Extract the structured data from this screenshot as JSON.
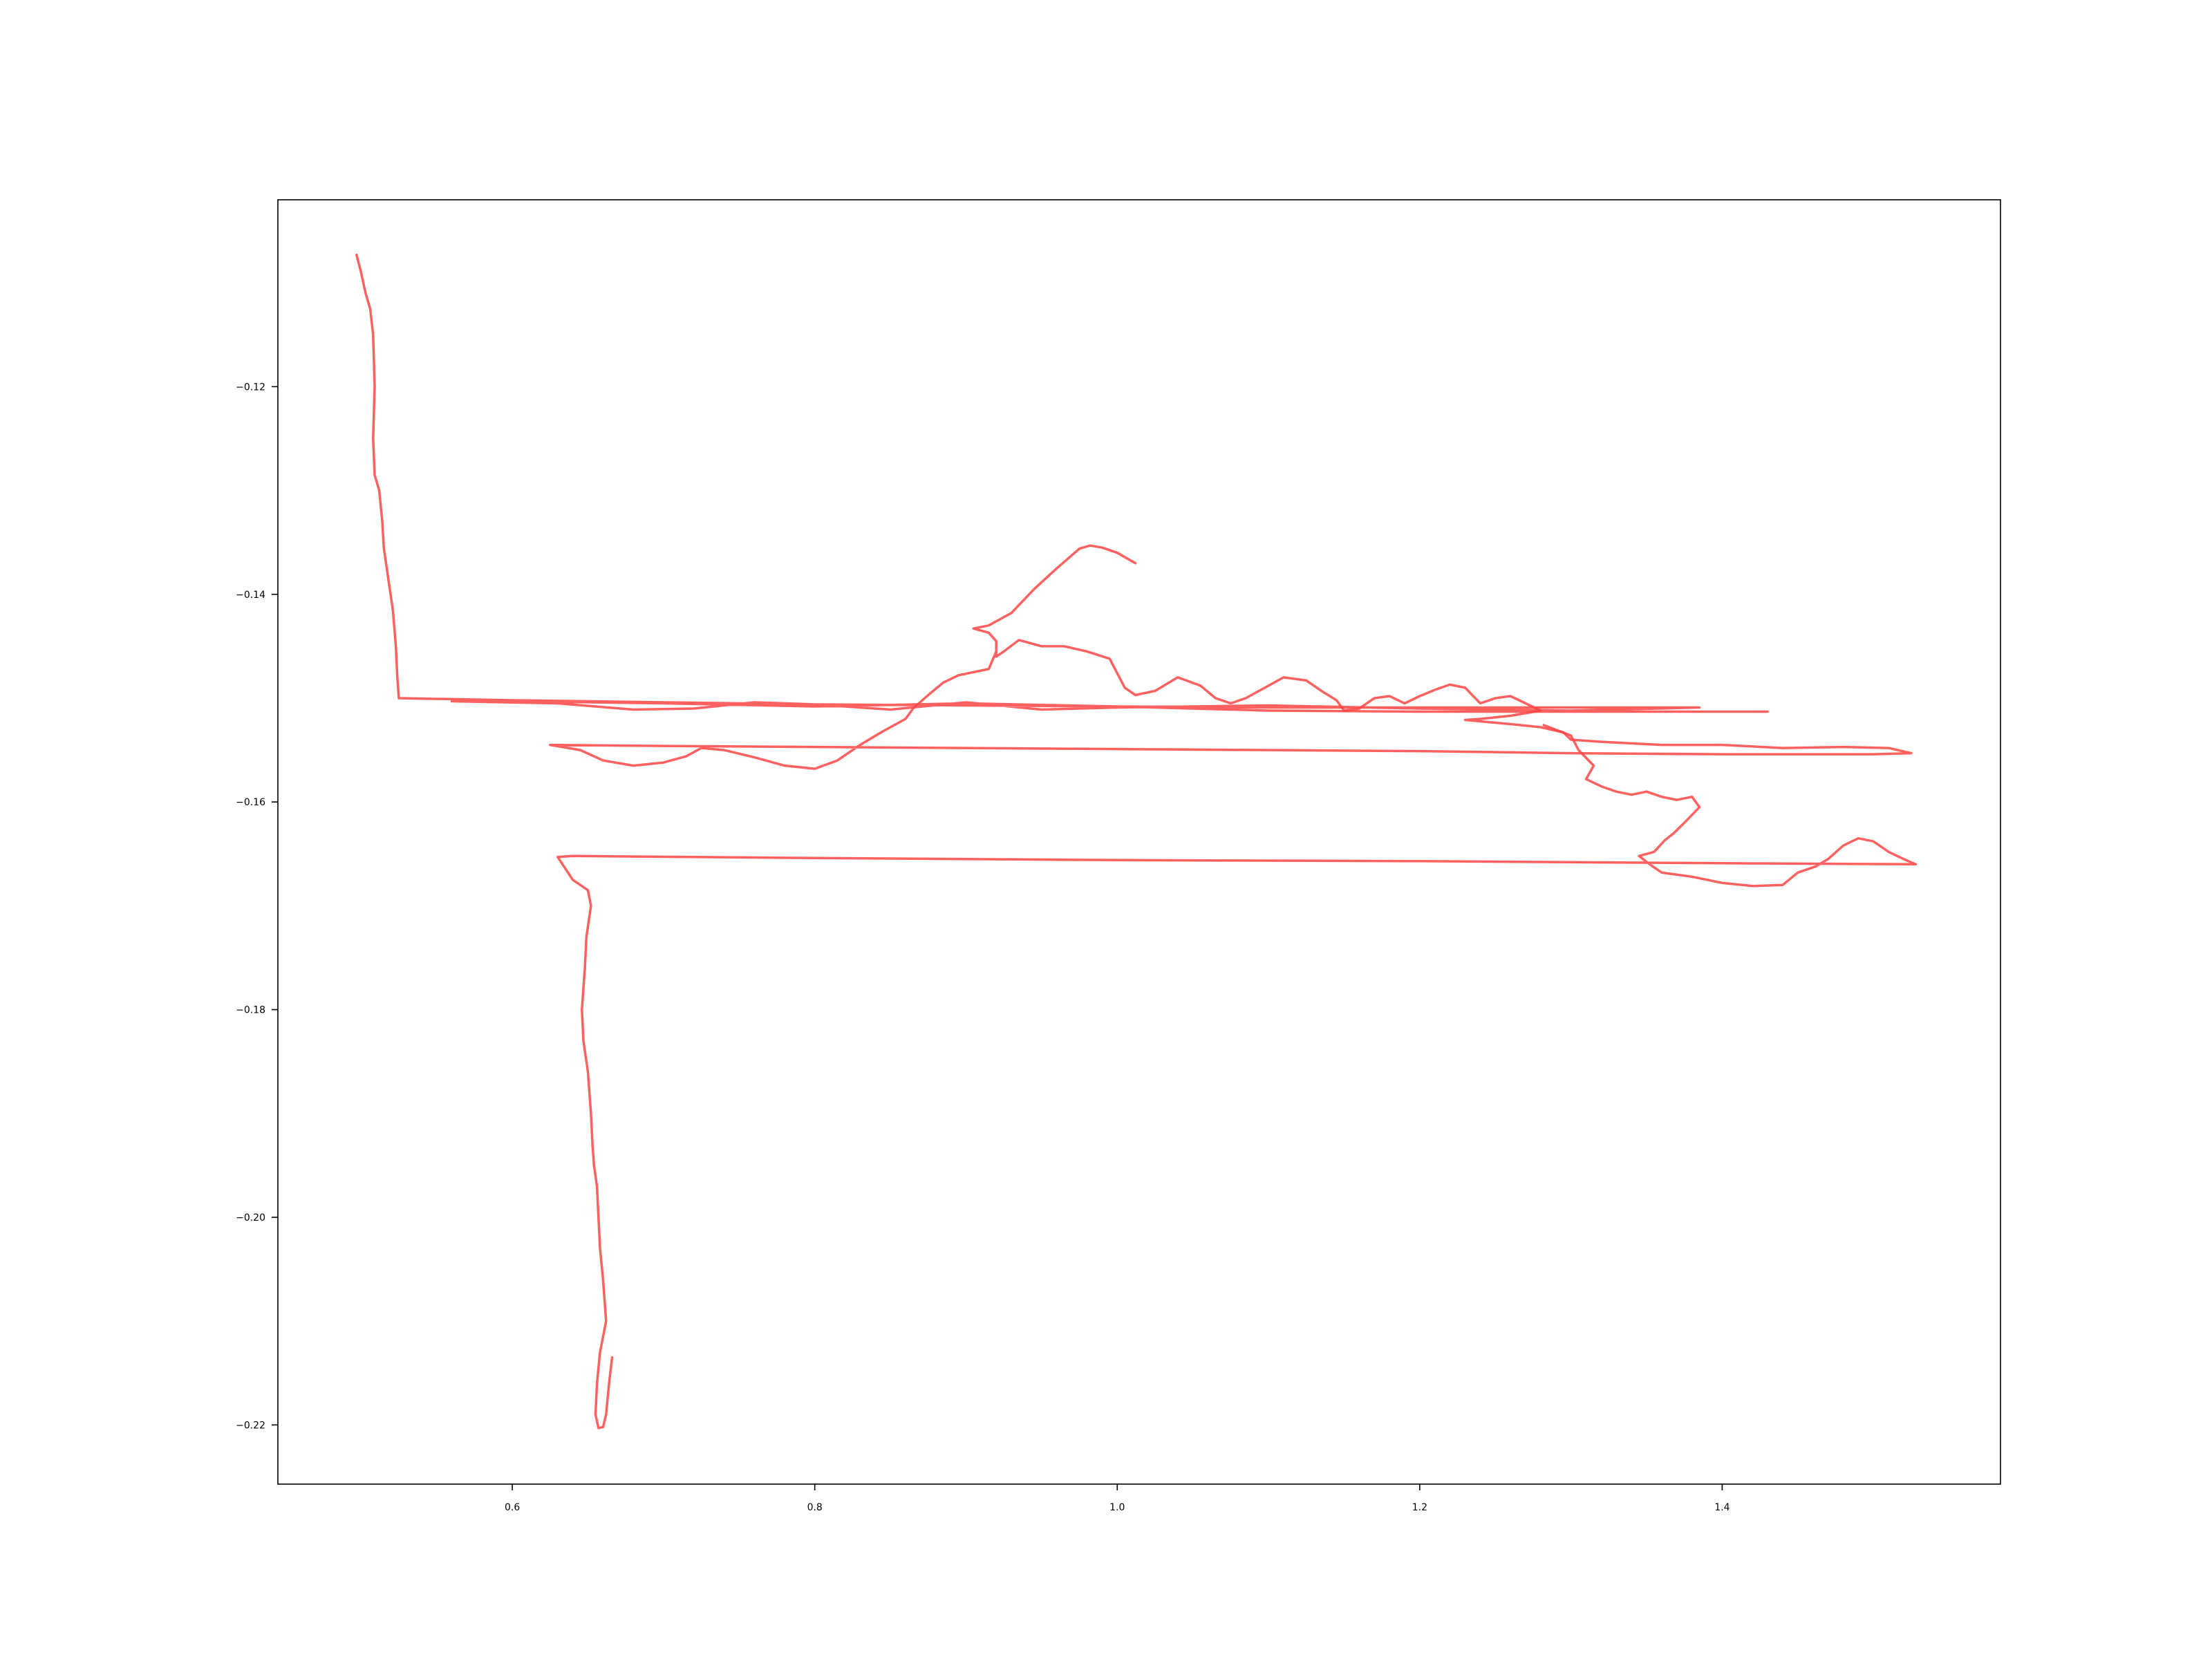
{
  "chart_data": {
    "type": "line",
    "title": "",
    "xlabel": "",
    "ylabel": "",
    "xlim": [
      0.445,
      1.584
    ],
    "ylim": [
      -0.2257,
      -0.102
    ],
    "x_ticks": [
      0.6,
      0.8,
      1.0,
      1.2,
      1.4
    ],
    "x_tick_labels": [
      "0.6",
      "0.8",
      "1.0",
      "1.2",
      "1.4"
    ],
    "y_ticks": [
      -0.12,
      -0.14,
      -0.16,
      -0.18,
      -0.2,
      -0.22
    ],
    "y_tick_labels": [
      "−0.12",
      "−0.14",
      "−0.16",
      "−0.18",
      "−0.20",
      "−0.22"
    ],
    "grid": false,
    "legend": "none",
    "line_color": "#ff4444",
    "series": [
      {
        "values": [
          [
            0.497,
            -0.1073
          ],
          [
            0.5,
            -0.109
          ],
          [
            0.503,
            -0.111
          ],
          [
            0.506,
            -0.1125
          ],
          [
            0.508,
            -0.115
          ],
          [
            0.509,
            -0.12
          ],
          [
            0.508,
            -0.125
          ],
          [
            0.509,
            -0.1285
          ],
          [
            0.512,
            -0.13
          ],
          [
            0.514,
            -0.133
          ],
          [
            0.515,
            -0.1355
          ],
          [
            0.518,
            -0.1385
          ],
          [
            0.521,
            -0.1415
          ],
          [
            0.523,
            -0.145
          ],
          [
            0.524,
            -0.148
          ],
          [
            0.525,
            -0.15
          ],
          [
            0.6,
            -0.1502
          ],
          [
            0.7,
            -0.1504
          ],
          [
            0.8,
            -0.1506
          ],
          [
            0.9,
            -0.1507
          ],
          [
            1.0,
            -0.1508
          ],
          [
            1.1,
            -0.1509
          ],
          [
            1.2,
            -0.1509
          ],
          [
            1.3,
            -0.1509
          ],
          [
            1.385,
            -0.1509
          ],
          [
            1.3,
            -0.1512
          ],
          [
            1.2,
            -0.151
          ],
          [
            1.1,
            -0.1507
          ],
          [
            1.0,
            -0.1509
          ],
          [
            0.95,
            -0.1511
          ],
          [
            0.9,
            -0.1504
          ],
          [
            0.85,
            -0.1511
          ],
          [
            0.8,
            -0.1506
          ],
          [
            0.76,
            -0.1504
          ],
          [
            0.72,
            -0.151
          ],
          [
            0.68,
            -0.1511
          ],
          [
            0.63,
            -0.1505
          ],
          [
            0.56,
            -0.1503
          ],
          [
            0.6,
            -0.1503
          ],
          [
            0.7,
            -0.1505
          ],
          [
            0.8,
            -0.1508
          ],
          [
            0.9,
            -0.1505
          ],
          [
            1.0,
            -0.1508
          ],
          [
            1.1,
            -0.1512
          ],
          [
            1.2,
            -0.1513
          ],
          [
            1.3,
            -0.1513
          ],
          [
            1.43,
            -0.1513
          ]
        ]
      },
      {
        "values": [
          [
            1.012,
            -0.137
          ],
          [
            1.0,
            -0.136
          ],
          [
            0.99,
            -0.1355
          ],
          [
            0.982,
            -0.1353
          ],
          [
            0.975,
            -0.1356
          ],
          [
            0.96,
            -0.1375
          ],
          [
            0.945,
            -0.1395
          ],
          [
            0.93,
            -0.1418
          ],
          [
            0.915,
            -0.143
          ],
          [
            0.905,
            -0.1433
          ],
          [
            0.915,
            -0.1437
          ],
          [
            0.92,
            -0.1445
          ],
          [
            0.92,
            -0.146
          ],
          [
            0.925,
            -0.1455
          ],
          [
            0.935,
            -0.1444
          ],
          [
            0.95,
            -0.145
          ],
          [
            0.965,
            -0.145
          ],
          [
            0.98,
            -0.1455
          ],
          [
            0.995,
            -0.1462
          ],
          [
            1.005,
            -0.149
          ],
          [
            1.012,
            -0.1497
          ],
          [
            1.025,
            -0.1493
          ],
          [
            1.04,
            -0.148
          ],
          [
            1.055,
            -0.1488
          ],
          [
            1.065,
            -0.15
          ],
          [
            1.075,
            -0.1505
          ],
          [
            1.085,
            -0.15
          ],
          [
            1.095,
            -0.1492
          ],
          [
            1.11,
            -0.148
          ],
          [
            1.125,
            -0.1483
          ],
          [
            1.135,
            -0.1493
          ],
          [
            1.145,
            -0.1502
          ],
          [
            1.15,
            -0.1512
          ],
          [
            1.16,
            -0.151
          ],
          [
            1.17,
            -0.15
          ],
          [
            1.18,
            -0.1498
          ],
          [
            1.19,
            -0.1505
          ],
          [
            1.2,
            -0.1498
          ],
          [
            1.21,
            -0.1492
          ],
          [
            1.22,
            -0.1487
          ],
          [
            1.23,
            -0.149
          ],
          [
            1.24,
            -0.1505
          ],
          [
            1.25,
            -0.15
          ],
          [
            1.26,
            -0.1498
          ],
          [
            1.27,
            -0.1505
          ],
          [
            1.28,
            -0.1512
          ],
          [
            1.26,
            -0.1517
          ],
          [
            1.24,
            -0.152
          ],
          [
            1.23,
            -0.1521
          ],
          [
            1.26,
            -0.1525
          ],
          [
            1.28,
            -0.1528
          ],
          [
            1.295,
            -0.1533
          ],
          [
            1.3,
            -0.154
          ],
          [
            1.32,
            -0.1542
          ],
          [
            1.36,
            -0.1545
          ],
          [
            1.4,
            -0.1545
          ],
          [
            1.44,
            -0.1548
          ],
          [
            1.48,
            -0.1547
          ],
          [
            1.51,
            -0.1548
          ],
          [
            1.525,
            -0.1553
          ],
          [
            1.5,
            -0.1554
          ],
          [
            1.4,
            -0.1554
          ],
          [
            1.3,
            -0.1553
          ],
          [
            1.2,
            -0.1551
          ],
          [
            1.1,
            -0.155
          ],
          [
            1.0,
            -0.1549
          ],
          [
            0.9,
            -0.1548
          ],
          [
            0.8,
            -0.1547
          ],
          [
            0.7,
            -0.1546
          ],
          [
            0.625,
            -0.1545
          ],
          [
            0.645,
            -0.155
          ],
          [
            0.66,
            -0.156
          ],
          [
            0.68,
            -0.1565
          ],
          [
            0.7,
            -0.1562
          ],
          [
            0.715,
            -0.1556
          ],
          [
            0.725,
            -0.1548
          ],
          [
            0.74,
            -0.155
          ],
          [
            0.76,
            -0.1557
          ],
          [
            0.78,
            -0.1565
          ],
          [
            0.8,
            -0.1568
          ],
          [
            0.815,
            -0.156
          ],
          [
            0.83,
            -0.1545
          ],
          [
            0.845,
            -0.1532
          ],
          [
            0.86,
            -0.152
          ],
          [
            0.865,
            -0.151
          ],
          [
            0.875,
            -0.1497
          ],
          [
            0.885,
            -0.1485
          ],
          [
            0.895,
            -0.1478
          ],
          [
            0.905,
            -0.1475
          ],
          [
            0.915,
            -0.1472
          ],
          [
            0.92,
            -0.1455
          ]
        ]
      },
      {
        "values": [
          [
            1.282,
            -0.1526
          ],
          [
            1.3,
            -0.1536
          ],
          [
            1.305,
            -0.155
          ],
          [
            1.315,
            -0.1565
          ],
          [
            1.31,
            -0.1578
          ],
          [
            1.32,
            -0.1585
          ],
          [
            1.33,
            -0.159
          ],
          [
            1.34,
            -0.1593
          ],
          [
            1.35,
            -0.159
          ],
          [
            1.36,
            -0.1595
          ],
          [
            1.37,
            -0.1598
          ],
          [
            1.38,
            -0.1595
          ],
          [
            1.385,
            -0.1605
          ],
          [
            1.375,
            -0.162
          ],
          [
            1.368,
            -0.163
          ],
          [
            1.362,
            -0.1637
          ],
          [
            1.355,
            -0.1648
          ],
          [
            1.345,
            -0.1652
          ],
          [
            1.352,
            -0.166
          ],
          [
            1.36,
            -0.1668
          ],
          [
            1.38,
            -0.1672
          ],
          [
            1.4,
            -0.1678
          ],
          [
            1.42,
            -0.1681
          ],
          [
            1.44,
            -0.168
          ],
          [
            1.45,
            -0.1668
          ],
          [
            1.462,
            -0.1662
          ],
          [
            1.47,
            -0.1655
          ],
          [
            1.48,
            -0.1642
          ],
          [
            1.49,
            -0.1635
          ],
          [
            1.5,
            -0.1638
          ],
          [
            1.51,
            -0.1648
          ],
          [
            1.52,
            -0.1655
          ],
          [
            1.528,
            -0.166
          ],
          [
            1.4,
            -0.1659
          ],
          [
            1.2,
            -0.1657
          ],
          [
            1.0,
            -0.1656
          ],
          [
            0.8,
            -0.1654
          ],
          [
            0.64,
            -0.1652
          ],
          [
            0.63,
            -0.1653
          ],
          [
            0.64,
            -0.1675
          ],
          [
            0.65,
            -0.1685
          ],
          [
            0.652,
            -0.17
          ],
          [
            0.649,
            -0.173
          ],
          [
            0.648,
            -0.176
          ],
          [
            0.646,
            -0.18
          ],
          [
            0.647,
            -0.183
          ],
          [
            0.65,
            -0.186
          ],
          [
            0.652,
            -0.19
          ],
          [
            0.653,
            -0.193
          ],
          [
            0.654,
            -0.195
          ],
          [
            0.656,
            -0.197
          ],
          [
            0.657,
            -0.2
          ],
          [
            0.658,
            -0.203
          ],
          [
            0.66,
            -0.206
          ],
          [
            0.661,
            -0.208
          ],
          [
            0.662,
            -0.21
          ],
          [
            0.658,
            -0.213
          ],
          [
            0.656,
            -0.216
          ],
          [
            0.655,
            -0.219
          ],
          [
            0.657,
            -0.2203
          ],
          [
            0.66,
            -0.2202
          ],
          [
            0.662,
            -0.219
          ],
          [
            0.664,
            -0.216
          ],
          [
            0.666,
            -0.2135
          ]
        ]
      }
    ]
  }
}
